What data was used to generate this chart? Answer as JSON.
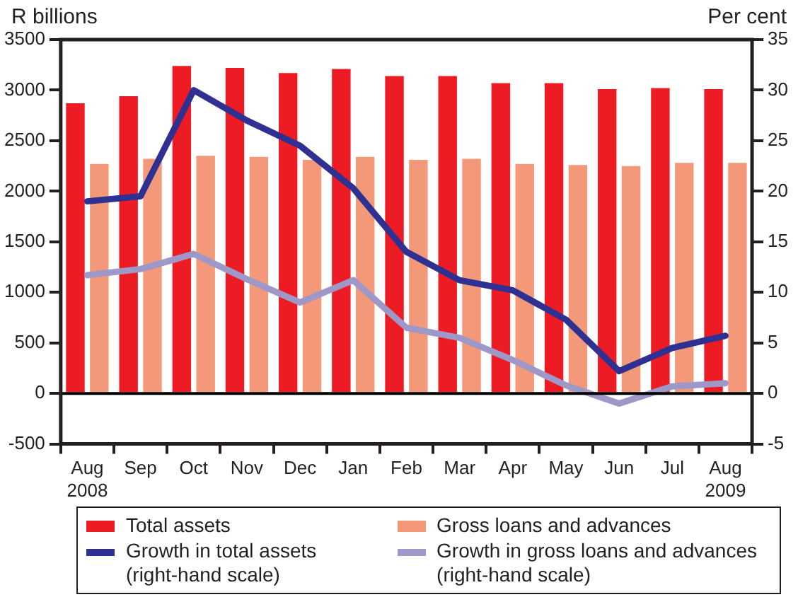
{
  "chart_data": {
    "type": "bar",
    "ylabel": "R billions",
    "y2label": "Per cent",
    "categories": [
      "Aug\n2008",
      "Sep",
      "Oct",
      "Nov",
      "Dec",
      "Jan",
      "Feb",
      "Mar",
      "Apr",
      "May",
      "Jun",
      "Jul",
      "Aug\n2009"
    ],
    "series": [
      {
        "name": "Total assets",
        "color": "#ed1c24",
        "values": [
          2870,
          2940,
          3240,
          3220,
          3170,
          3210,
          3140,
          3140,
          3070,
          3070,
          3010,
          3020,
          3010
        ]
      },
      {
        "name": "Gross loans and advances",
        "color": "#f4987a",
        "values": [
          2270,
          2320,
          2350,
          2340,
          2310,
          2340,
          2310,
          2320,
          2270,
          2260,
          2250,
          2280,
          2280
        ]
      },
      {
        "name": "Growth in total assets\n(right-hand scale)",
        "type": "line",
        "axis": "y2",
        "color": "#2e3192",
        "values": [
          19,
          19.5,
          30,
          27,
          24.5,
          20.3,
          14,
          11.2,
          10.2,
          7.3,
          2.2,
          4.5,
          5.7
        ]
      },
      {
        "name": "Growth in gross loans and advances\n(right-hand scale)",
        "type": "line",
        "axis": "y2",
        "color": "#9e98c8",
        "values": [
          11.7,
          12.3,
          13.8,
          11.3,
          9,
          11.2,
          6.5,
          5.5,
          3.3,
          0.8,
          -1,
          0.7,
          1
        ]
      }
    ],
    "ylim": [
      -500,
      3500
    ],
    "yticks": [
      -500,
      0,
      500,
      1000,
      1500,
      2000,
      2500,
      3000,
      3500
    ],
    "y2lim": [
      -5,
      35
    ],
    "y2ticks": [
      -5,
      0,
      5,
      10,
      15,
      20,
      25,
      30,
      35
    ],
    "ref_lines": [
      {
        "axis": "y",
        "value": 0,
        "color": "#000000"
      }
    ],
    "grid": false,
    "legend": "bottom",
    "marker": "none",
    "line_style": "solid"
  }
}
